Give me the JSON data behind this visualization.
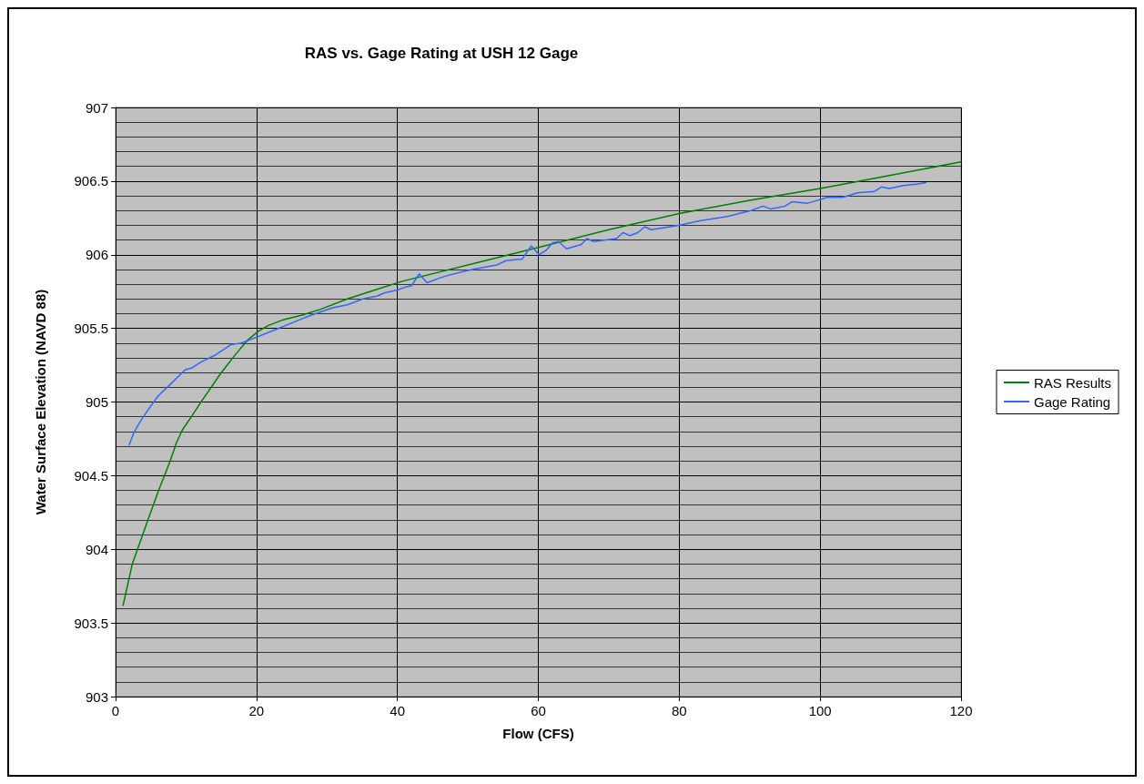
{
  "chart_data": {
    "type": "line",
    "title": "RAS vs. Gage Rating at USH 12 Gage",
    "xlabel": "Flow (CFS)",
    "ylabel": "Water Surface Elevation (NAVD 88)",
    "xlim": [
      0,
      120
    ],
    "xticks": [
      0,
      20,
      40,
      60,
      80,
      100,
      120
    ],
    "ylim": [
      903,
      907
    ],
    "yticks": [
      903,
      903.5,
      904,
      904.5,
      905,
      905.5,
      906,
      906.5,
      907
    ],
    "grid": true,
    "legend": "right",
    "marker": "none",
    "line_style": "solid",
    "series": [
      {
        "name": "RAS Results",
        "color": "#008000",
        "x": [
          1.07,
          2.37,
          4.52,
          6.03,
          7.75,
          8.61,
          9.47,
          10.76,
          12.27,
          14.86,
          16.8,
          18.73,
          20.24,
          21.7,
          23.9,
          26.5,
          29.1,
          32.9,
          36.8,
          40.7,
          50,
          60,
          70,
          80,
          90,
          100,
          110,
          120
        ],
        "values": [
          903.62,
          903.9,
          904.19,
          904.39,
          904.6,
          904.72,
          904.81,
          904.9,
          905.01,
          905.19,
          905.31,
          905.42,
          905.48,
          905.52,
          905.56,
          905.59,
          905.63,
          905.7,
          905.76,
          905.82,
          905.93,
          906.05,
          906.17,
          906.28,
          906.37,
          906.45,
          906.54,
          906.63
        ]
      },
      {
        "name": "Gage Rating",
        "color": "#3366ff",
        "x": [
          1.94,
          2.58,
          3.66,
          4.95,
          6.03,
          7.75,
          9.9,
          10.76,
          12.05,
          14.2,
          16.4,
          17.87,
          20,
          22.6,
          25.2,
          27.8,
          30.8,
          32.9,
          35.1,
          37.2,
          38.1,
          40,
          41.1,
          42,
          43.1,
          44.2,
          45.9,
          47.2,
          50.6,
          54.1,
          55.4,
          57.7,
          59,
          60.1,
          61.1,
          62,
          62.9,
          64,
          66.1,
          66.9,
          67.8,
          71.1,
          72,
          73,
          74.1,
          75.1,
          76,
          79.9,
          82.9,
          86.8,
          90.2,
          91.9,
          93,
          95,
          96,
          98.2,
          99.7,
          101,
          103.2,
          105.3,
          107.7,
          108.7,
          109.8,
          111.8,
          113.9,
          115
        ],
        "values": [
          904.71,
          904.79,
          904.88,
          904.97,
          905.04,
          905.12,
          905.22,
          905.23,
          905.27,
          905.32,
          905.39,
          905.4,
          905.44,
          905.49,
          905.54,
          905.59,
          905.64,
          905.66,
          905.7,
          905.72,
          905.74,
          905.76,
          905.78,
          905.79,
          905.87,
          905.81,
          905.84,
          905.86,
          905.9,
          905.93,
          905.96,
          905.97,
          906.06,
          906,
          906.03,
          906.08,
          906.09,
          906.04,
          906.07,
          906.11,
          906.09,
          906.11,
          906.15,
          906.13,
          906.15,
          906.19,
          906.17,
          906.2,
          906.23,
          906.26,
          906.3,
          906.33,
          906.31,
          906.33,
          906.36,
          906.35,
          906.37,
          906.39,
          906.39,
          906.42,
          906.43,
          906.46,
          906.45,
          906.47,
          906.48,
          906.49
        ]
      }
    ]
  }
}
